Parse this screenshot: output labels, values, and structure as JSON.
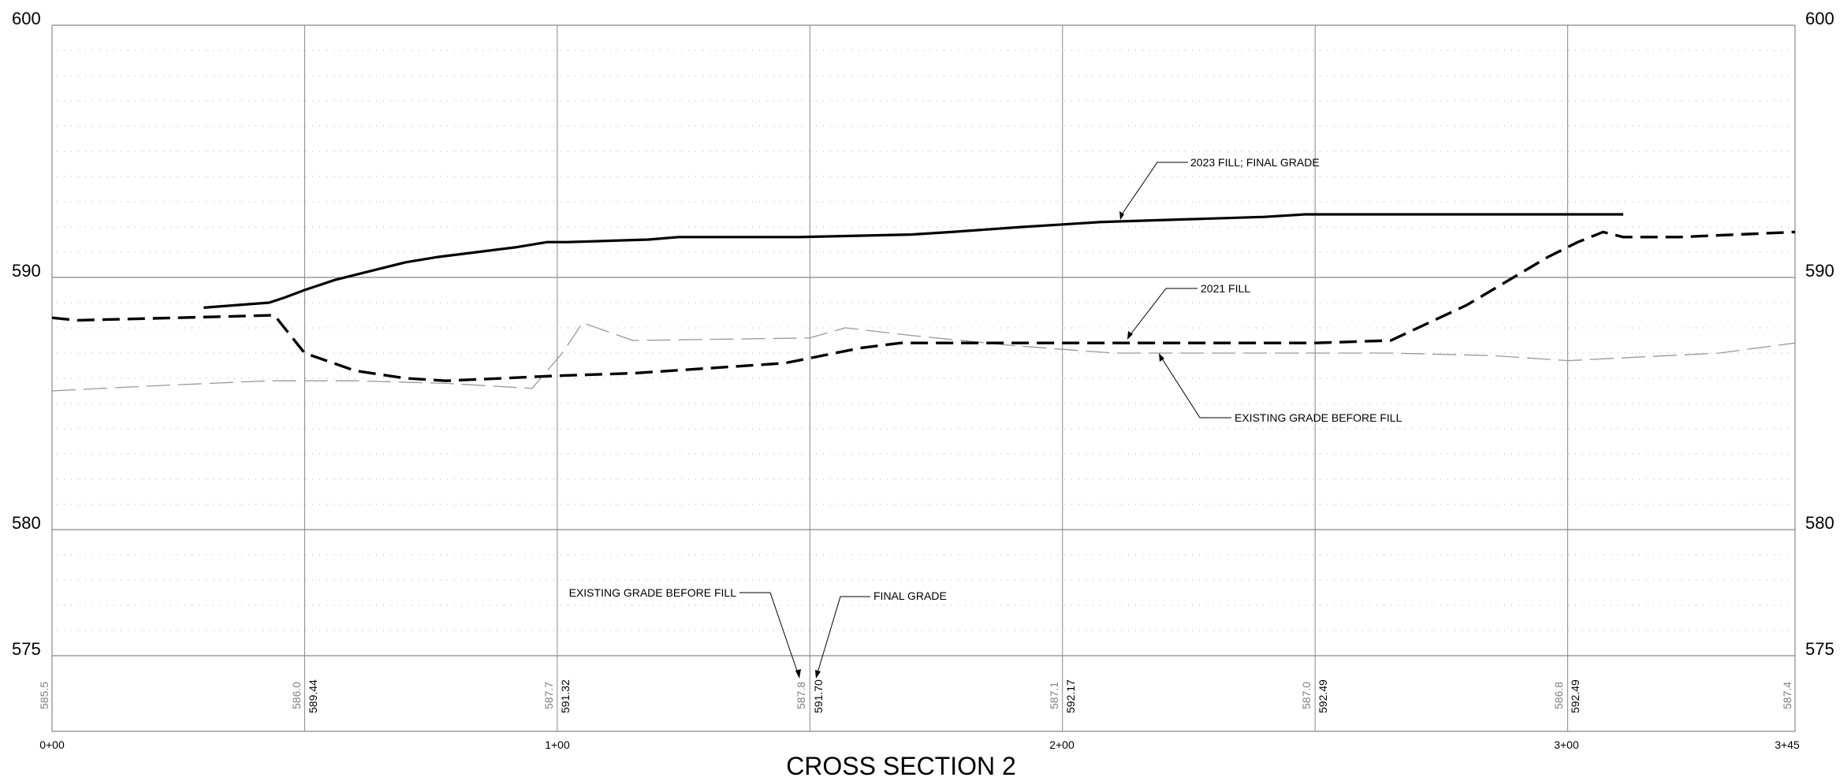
{
  "chart_data": {
    "type": "line",
    "title": "CROSS SECTION 2",
    "xlim": [
      0,
      345
    ],
    "ylim": [
      575,
      600
    ],
    "y_tick_labels": [
      "600",
      "590",
      "580",
      "575"
    ],
    "y_ticks": [
      600,
      590,
      580,
      575
    ],
    "x_tick_labels": [
      "0+00",
      "1+00",
      "2+00",
      "3+00",
      "3+45"
    ],
    "x_ticks": [
      0,
      100,
      200,
      300,
      345
    ],
    "grid": true,
    "series": [
      {
        "name": "2023 FILL; FINAL GRADE",
        "style": "solid",
        "color": "#000000",
        "x": [
          30,
          43,
          46,
          50,
          56,
          62,
          70,
          76,
          84,
          92,
          98,
          102,
          118,
          124,
          128,
          148,
          170,
          178,
          192,
          200,
          208,
          224,
          240,
          248,
          256,
          275,
          292,
          297,
          306,
          309,
          311
        ],
        "y": [
          588.8,
          589.0,
          589.2,
          589.5,
          589.9,
          590.2,
          590.6,
          590.8,
          591.0,
          591.2,
          591.4,
          591.4,
          591.5,
          591.6,
          591.6,
          591.6,
          591.7,
          591.8,
          592.0,
          592.1,
          592.2,
          592.3,
          592.4,
          592.5,
          592.5,
          592.5,
          592.5,
          592.5,
          592.5,
          592.5,
          592.5
        ]
      },
      {
        "name": "2021 FILL",
        "style": "dashed",
        "color": "#000000",
        "x": [
          0,
          5,
          25,
          44,
          50,
          60,
          70,
          78,
          100,
          115,
          145,
          160,
          168,
          200,
          230,
          250,
          265,
          280,
          296,
          302,
          307,
          311,
          313,
          322,
          345
        ],
        "y": [
          588.4,
          588.3,
          588.4,
          588.5,
          587.0,
          586.3,
          586.0,
          585.9,
          586.1,
          586.2,
          586.6,
          587.2,
          587.4,
          587.4,
          587.4,
          587.4,
          587.5,
          588.9,
          590.8,
          591.4,
          591.8,
          591.6,
          591.6,
          591.6,
          591.8
        ]
      },
      {
        "name": "EXISTING GRADE BEFORE FILL",
        "style": "long-dash",
        "color": "#999999",
        "x": [
          0,
          20,
          43,
          60,
          78,
          95,
          101,
          105,
          115,
          150,
          157,
          170,
          190,
          210,
          230,
          250,
          265,
          285,
          300,
          310,
          330,
          345
        ],
        "y": [
          585.5,
          585.7,
          585.9,
          585.9,
          585.8,
          585.6,
          587.0,
          588.2,
          587.5,
          587.6,
          588.0,
          587.7,
          587.3,
          587.0,
          587.0,
          587.0,
          587.0,
          586.9,
          586.7,
          586.8,
          587.0,
          587.4
        ]
      }
    ],
    "value_rows": {
      "stations": [
        0,
        50,
        100,
        150,
        200,
        250,
        300,
        345
      ],
      "existing": [
        "585.5",
        "586.0",
        "587.7",
        "587.8",
        "587.1",
        "587.0",
        "586.8",
        "587.4"
      ],
      "final": [
        "",
        "589.44",
        "591.32",
        "591.70",
        "592.17",
        "592.49",
        "592.49",
        ""
      ]
    },
    "annotations": [
      {
        "text": "2023 FILL; FINAL GRADE",
        "target_series": "2023 FILL; FINAL GRADE"
      },
      {
        "text": "2021 FILL",
        "target_series": "2021 FILL"
      },
      {
        "text": "EXISTING GRADE BEFORE FILL",
        "target_series": "EXISTING GRADE BEFORE FILL"
      },
      {
        "text": "EXISTING GRADE BEFORE FILL",
        "target_series": "value-row"
      },
      {
        "text": "FINAL GRADE",
        "target_series": "value-row"
      }
    ]
  },
  "colors": {
    "grid_major": "#888888",
    "grid_minor_dots": "#b0b0b0",
    "existing_grade": "#999999",
    "fill": "#000000"
  }
}
